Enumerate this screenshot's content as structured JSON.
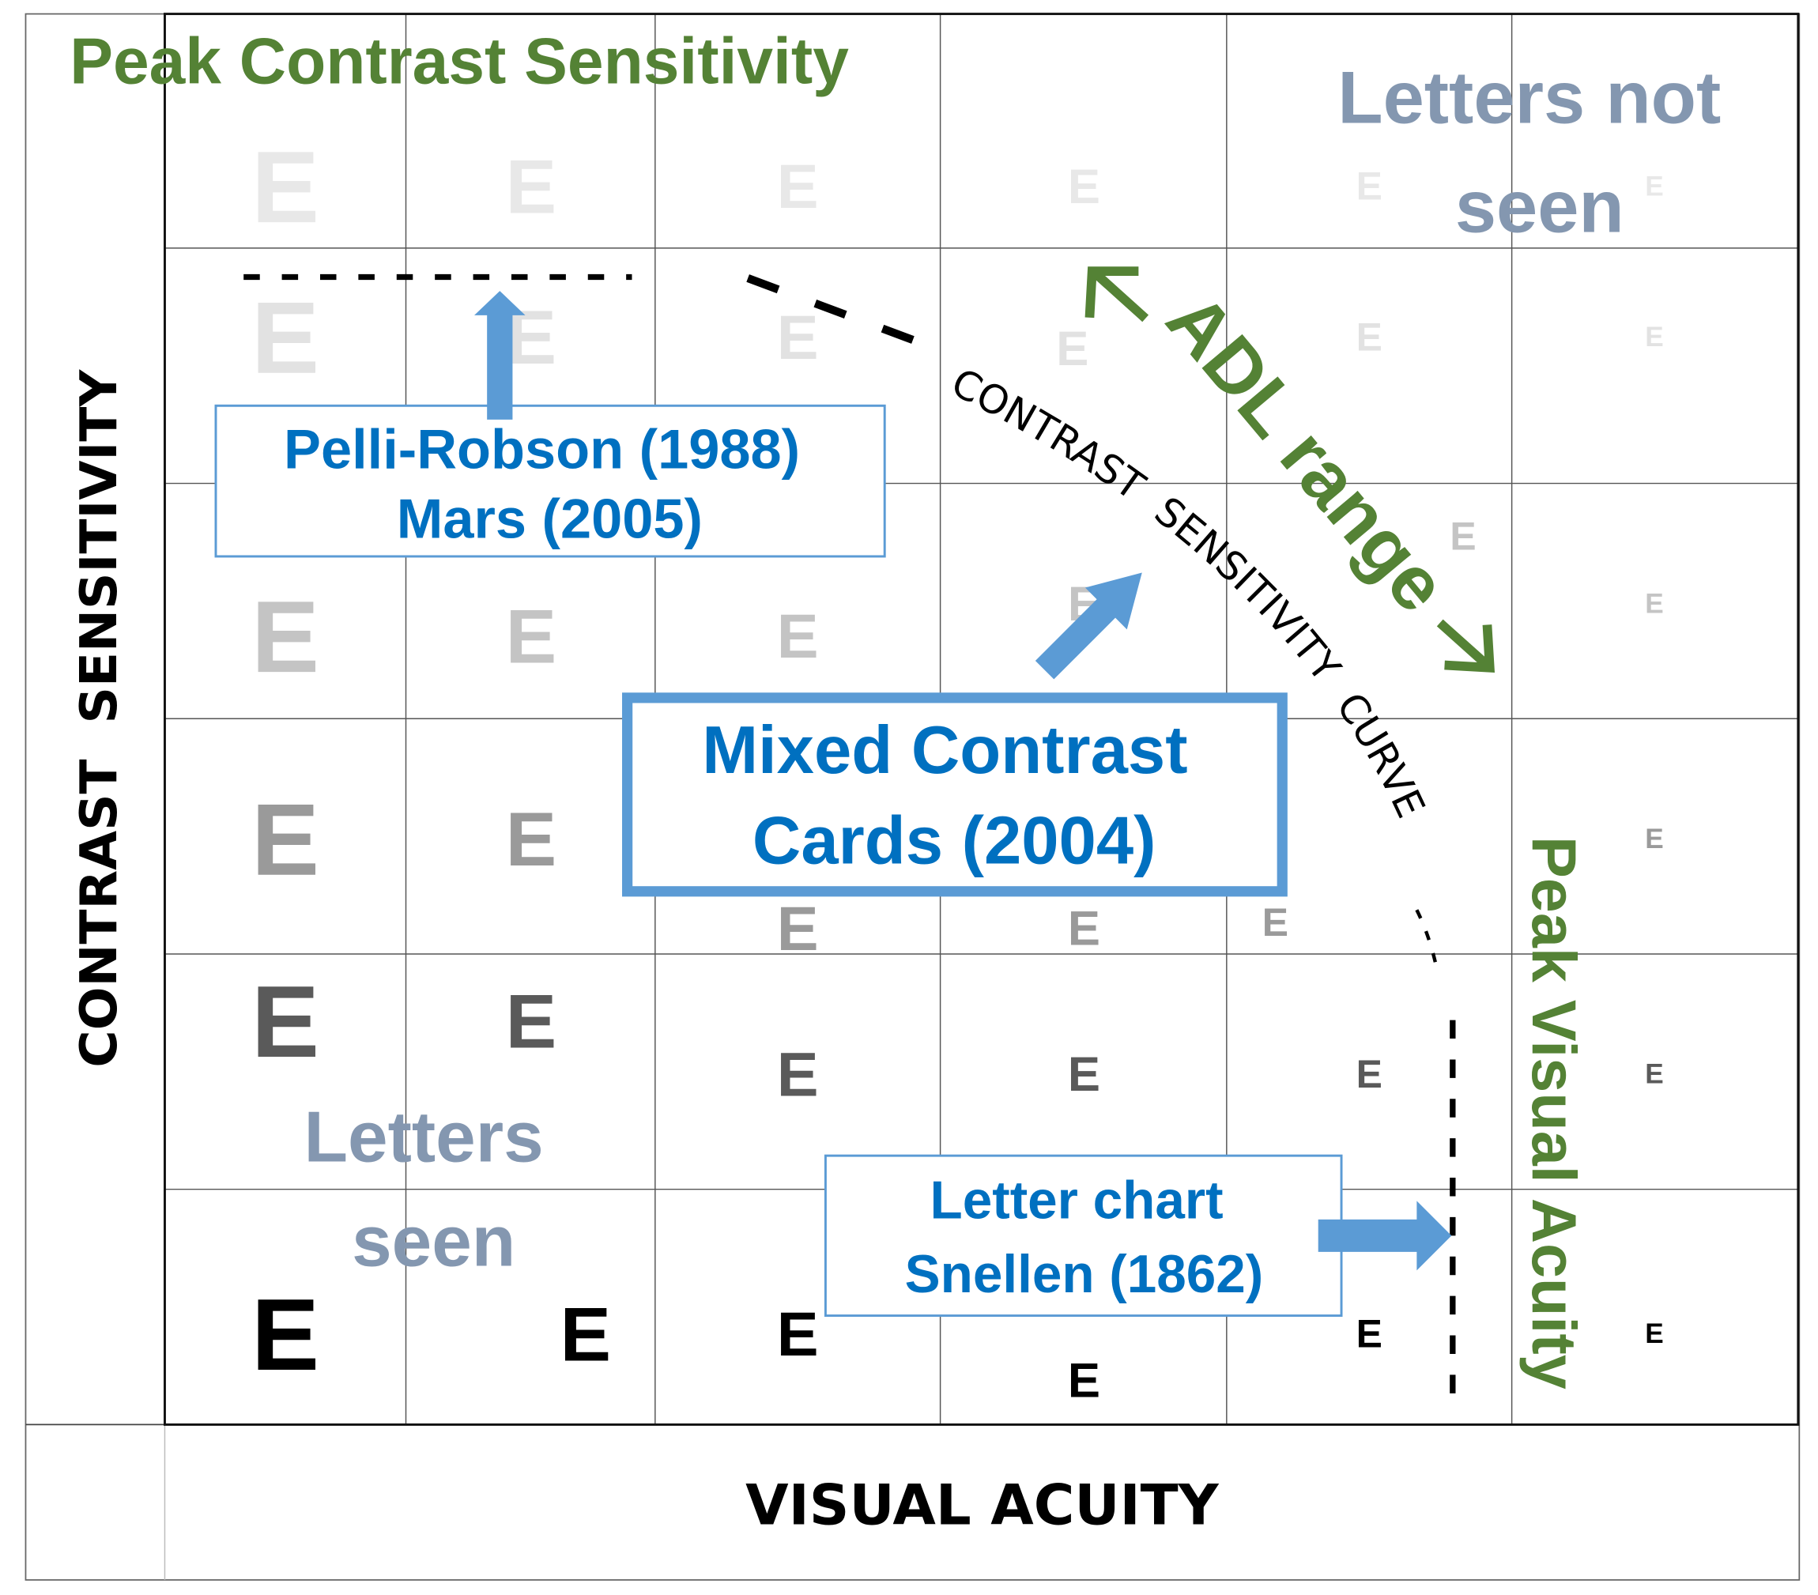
{
  "axes": {
    "y_label": "CONTRAST  SENSITIVITY",
    "x_label": "VISUAL ACUITY"
  },
  "optotype": {
    "letter": "E",
    "columns": 6,
    "rows": 6,
    "row_colors": [
      "#e8e8e8",
      "#e2e2e2",
      "#c4c4c4",
      "#9a9a9a",
      "#5a5a5a",
      "#000000"
    ]
  },
  "annotations": {
    "peak_contrast": "Peak Contrast Sensitivity",
    "letters_not_seen": [
      "Letters not",
      "seen"
    ],
    "letters_seen": [
      "Letters",
      "seen"
    ],
    "adl_range": "ADL range",
    "peak_visual_acuity": "Peak Visual Acuity",
    "curve_label": "CONTRAST  SENSITIVITY  CURVE"
  },
  "tests": {
    "pelli_robson": [
      "Pelli-Robson (1988)",
      "Mars (2005)"
    ],
    "mixed_contrast": [
      "Mixed Contrast",
      "Cards (2004)"
    ],
    "letter_chart": [
      "Letter chart",
      "Snellen (1862)"
    ]
  },
  "colors": {
    "green": "#548235",
    "blue_text": "#0070c0",
    "arrow_blue": "#5b9bd5",
    "gray_blue": "#8497b0"
  }
}
